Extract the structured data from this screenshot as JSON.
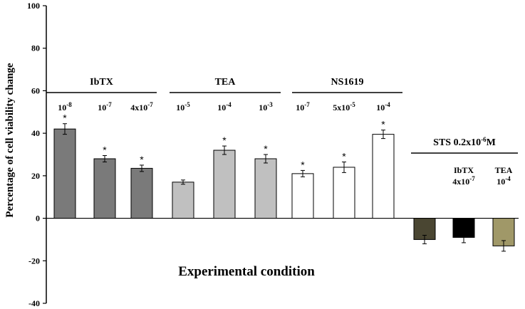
{
  "chart_data": {
    "type": "bar",
    "title": "",
    "xlabel": "Experimental condition",
    "ylabel": "Percentage of cell viability change",
    "ylim": [
      -40,
      100
    ],
    "yticks": [
      "100",
      "80",
      "60",
      "40",
      "20",
      "0",
      "-20",
      "-40"
    ],
    "yticks_values": [
      100,
      80,
      60,
      40,
      20,
      0,
      -20,
      -40
    ],
    "groups": [
      {
        "name": "IbTX",
        "bars": [
          0,
          1,
          2
        ]
      },
      {
        "name": "TEA",
        "bars": [
          3,
          4,
          5
        ]
      },
      {
        "name": "NS1619",
        "bars": [
          6,
          7,
          8
        ]
      }
    ],
    "sts_group": {
      "label_main": "STS 0.2x10",
      "label_sup": "-6",
      "label_unit": "M",
      "bars": [
        9,
        10,
        11
      ]
    },
    "bars": [
      {
        "group": "IbTX",
        "label_base": "10",
        "label_sup": "-8",
        "value": 42,
        "error": 2.5,
        "significant": true,
        "color": "#7a7a7a"
      },
      {
        "group": "IbTX",
        "label_base": "10",
        "label_sup": "-7",
        "value": 28,
        "error": 1.5,
        "significant": true,
        "color": "#7a7a7a"
      },
      {
        "group": "IbTX",
        "label_base": "4x10",
        "label_sup": "-7",
        "value": 23.5,
        "error": 1.5,
        "significant": true,
        "color": "#7a7a7a"
      },
      {
        "group": "TEA",
        "label_base": "10",
        "label_sup": "-5",
        "value": 17,
        "error": 1,
        "significant": false,
        "color": "#c0c0c0"
      },
      {
        "group": "TEA",
        "label_base": "10",
        "label_sup": "-4",
        "value": 32,
        "error": 2,
        "significant": true,
        "color": "#c0c0c0"
      },
      {
        "group": "TEA",
        "label_base": "10",
        "label_sup": "-3",
        "value": 28,
        "error": 2,
        "significant": true,
        "color": "#c0c0c0"
      },
      {
        "group": "NS1619",
        "label_base": "10",
        "label_sup": "-7",
        "value": 21,
        "error": 1.5,
        "significant": true,
        "color": "#ffffff"
      },
      {
        "group": "NS1619",
        "label_base": "5x10",
        "label_sup": "-5",
        "value": 24,
        "error": 2.5,
        "significant": true,
        "color": "#ffffff"
      },
      {
        "group": "NS1619",
        "label_base": "10",
        "label_sup": "-4",
        "value": 39.5,
        "error": 2,
        "significant": true,
        "color": "#ffffff"
      },
      {
        "group": "STS",
        "label_name": "",
        "label_base": "",
        "label_sup": "",
        "value": -10,
        "error": 2,
        "significant": false,
        "color": "#4a4632"
      },
      {
        "group": "STS",
        "label_name": "IbTX",
        "label_base": "4x10",
        "label_sup": "-7",
        "value": -9,
        "error": 2.5,
        "significant": false,
        "color": "#000000"
      },
      {
        "group": "STS",
        "label_name": "TEA",
        "label_base": "10",
        "label_sup": "-4",
        "value": -13,
        "error": 2.5,
        "significant": false,
        "color": "#a09868"
      }
    ],
    "significance_marker": "*"
  }
}
